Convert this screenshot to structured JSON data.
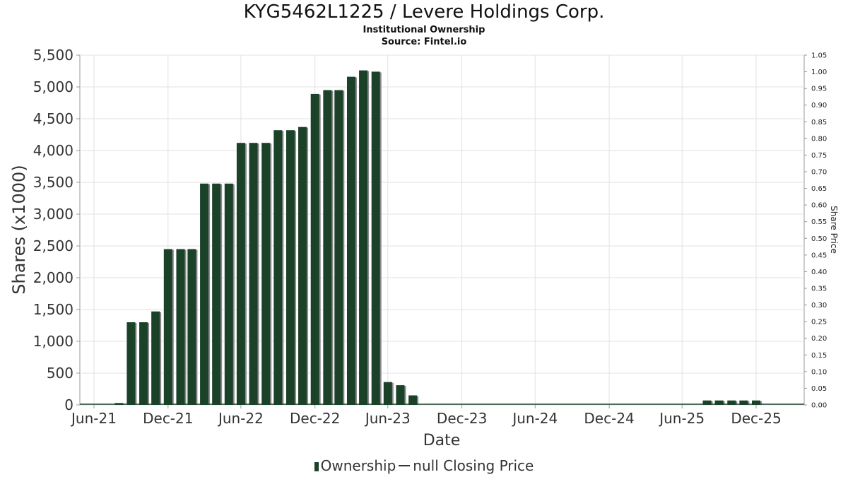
{
  "chart_data": {
    "type": "bar",
    "title": "KYG5462L1225 / Levere Holdings Corp.",
    "subtitle": "Institutional Ownership",
    "source": "Source: Fintel.io",
    "xlabel": "Date",
    "ylabel": "Shares (x1000)",
    "y2label": "Share Price",
    "ylim": [
      0,
      5500
    ],
    "y2lim": [
      0,
      1.05
    ],
    "grid": true,
    "legend_position": "bottom",
    "x_tick_labels": [
      "Jun-21",
      "Dec-21",
      "Jun-22",
      "Dec-22",
      "Jun-23",
      "Dec-23",
      "Jun-24",
      "Dec-24",
      "Jun-25",
      "Dec-25"
    ],
    "y_tick_labels": [
      "0",
      "500",
      "1,000",
      "1,500",
      "2,000",
      "2,500",
      "3,000",
      "3,500",
      "4,000",
      "4,500",
      "5,000",
      "5,500"
    ],
    "y2_tick_labels": [
      "0.00",
      "0.05",
      "0.10",
      "0.15",
      "0.20",
      "0.25",
      "0.30",
      "0.35",
      "0.40",
      "0.45",
      "0.50",
      "0.55",
      "0.60",
      "0.65",
      "0.70",
      "0.75",
      "0.80",
      "0.85",
      "0.90",
      "0.95",
      "1.00",
      "1.05"
    ],
    "series": [
      {
        "name": "Ownership",
        "color": "#1b4228",
        "x": [
          "2021-06-30",
          "2021-07-31",
          "2021-08-31",
          "2021-09-30",
          "2021-10-31",
          "2021-11-30",
          "2021-12-31",
          "2022-01-31",
          "2022-02-28",
          "2022-03-31",
          "2022-04-30",
          "2022-05-31",
          "2022-06-30",
          "2022-07-31",
          "2022-08-31",
          "2022-09-30",
          "2022-10-31",
          "2022-11-30",
          "2022-12-31",
          "2023-01-31",
          "2023-02-28",
          "2023-03-31",
          "2023-04-30",
          "2023-05-31",
          "2023-06-30",
          "2023-07-31",
          "2023-08-31",
          "2023-09-30",
          "2023-10-31",
          "2023-11-30",
          "2023-12-31",
          "2024-01-31",
          "2024-02-29",
          "2024-03-31",
          "2024-04-30",
          "2024-05-31",
          "2024-06-30",
          "2024-07-31",
          "2024-08-31",
          "2024-09-30",
          "2024-10-31",
          "2024-11-30",
          "2024-12-31",
          "2025-01-31",
          "2025-02-28",
          "2025-03-31",
          "2025-04-30",
          "2025-05-31",
          "2025-06-30",
          "2025-07-31",
          "2025-08-31",
          "2025-09-30",
          "2025-10-31",
          "2025-11-30",
          "2025-12-31"
        ],
        "values": [
          0,
          0,
          30,
          1300,
          1300,
          1470,
          2450,
          2450,
          2450,
          3480,
          3480,
          3480,
          4120,
          4120,
          4120,
          4320,
          4320,
          4370,
          4890,
          4950,
          4950,
          5160,
          5260,
          5240,
          360,
          310,
          150,
          0,
          0,
          0,
          0,
          0,
          0,
          0,
          0,
          0,
          0,
          0,
          0,
          0,
          0,
          0,
          0,
          0,
          0,
          0,
          0,
          0,
          0,
          0,
          70,
          70,
          70,
          70,
          70
        ]
      },
      {
        "name": "null Closing Price",
        "color": "#333333",
        "values": []
      }
    ]
  }
}
